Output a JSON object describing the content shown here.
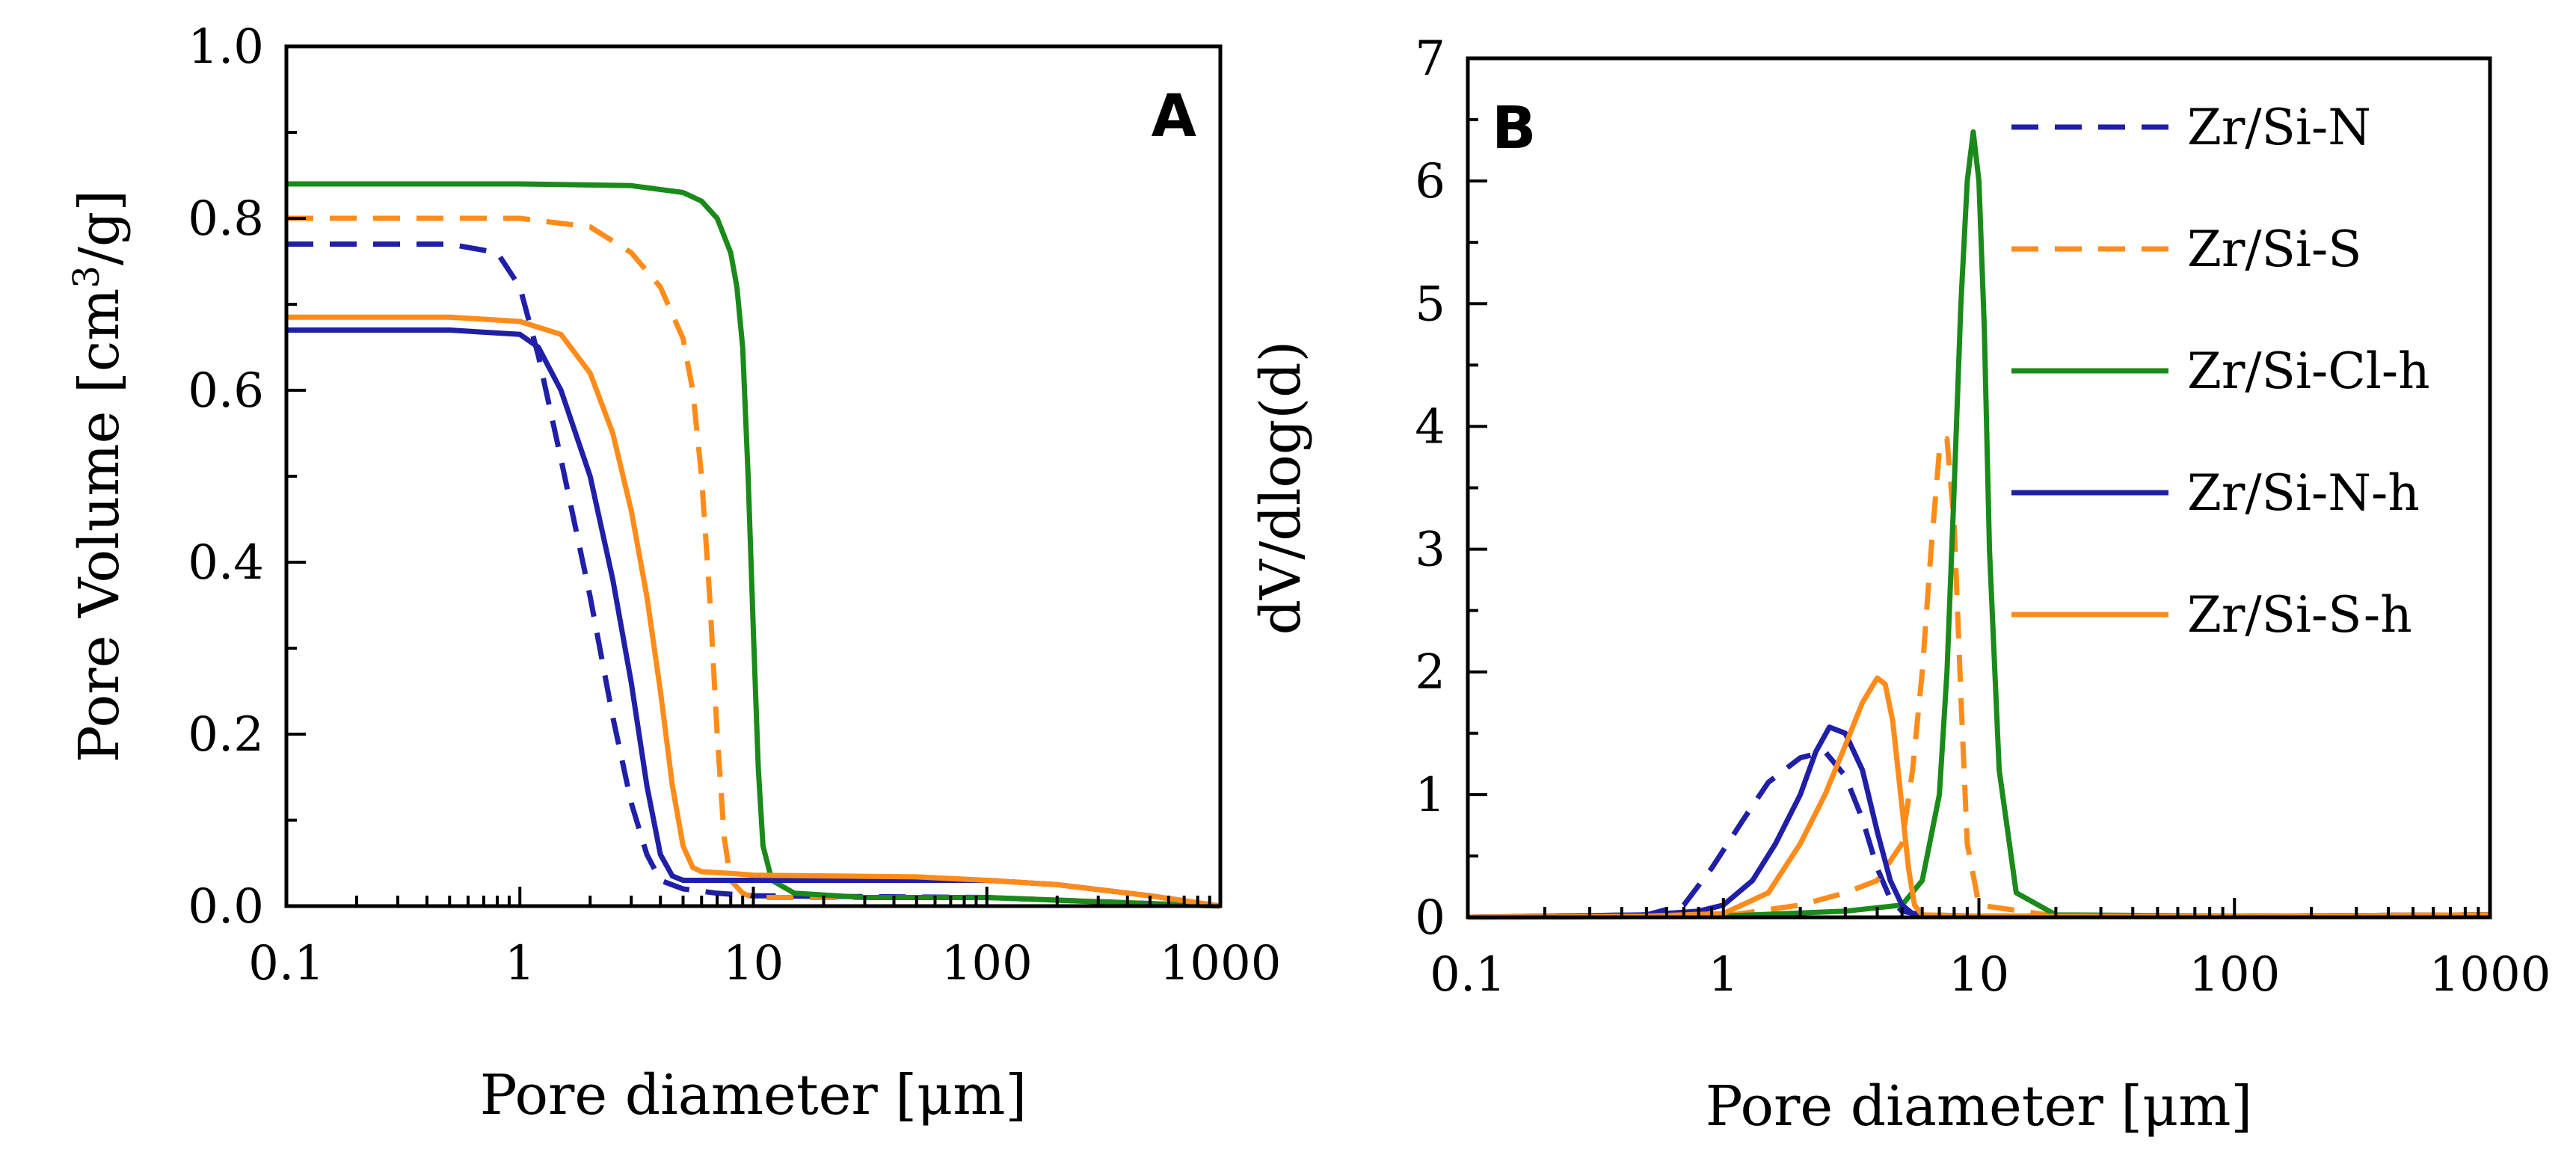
{
  "colors": {
    "Zr/Si-N": "#1f1fa8",
    "Zr/Si-S": "#ff8c1a",
    "Zr/Si-Cl-h": "#1a8a1a",
    "Zr/Si-N-h": "#1f1fa8",
    "Zr/Si-S-h": "#ff8c1a"
  },
  "chart_data": [
    {
      "type": "line",
      "panel_label": "A",
      "xlabel": "Pore diameter [μm]",
      "ylabel_main": "Pore Volume [cm",
      "ylabel_sup": "3",
      "ylabel_end": "/g]",
      "xscale": "log",
      "xlim": [
        0.1,
        1000
      ],
      "ylim": [
        0,
        1.0
      ],
      "xticks": [
        0.1,
        1,
        10,
        100,
        1000
      ],
      "xtick_labels": [
        "0.1",
        "1",
        "10",
        "100",
        "1000"
      ],
      "yticks": [
        0,
        0.2,
        0.4,
        0.6,
        0.8,
        1.0
      ],
      "ytick_labels": [
        "0.0",
        "0.2",
        "0.4",
        "0.6",
        "0.8",
        "1.0"
      ],
      "series": [
        {
          "name": "Zr/Si-N",
          "dash": true,
          "x": [
            0.1,
            0.5,
            0.8,
            1.0,
            1.2,
            1.5,
            2.0,
            2.5,
            3.0,
            3.5,
            4.0,
            5.0,
            7.0,
            10,
            100,
            1000
          ],
          "y": [
            0.77,
            0.77,
            0.76,
            0.72,
            0.64,
            0.52,
            0.36,
            0.22,
            0.12,
            0.06,
            0.03,
            0.02,
            0.015,
            0.012,
            0.01,
            0.0
          ]
        },
        {
          "name": "Zr/Si-S",
          "dash": true,
          "x": [
            0.1,
            1.0,
            2.0,
            3.0,
            4.0,
            5.0,
            5.5,
            6.0,
            6.5,
            7.0,
            7.5,
            8.0,
            9.0,
            10,
            100,
            1000
          ],
          "y": [
            0.8,
            0.8,
            0.79,
            0.76,
            0.72,
            0.66,
            0.6,
            0.5,
            0.36,
            0.2,
            0.08,
            0.03,
            0.015,
            0.01,
            0.01,
            0.0
          ]
        },
        {
          "name": "Zr/Si-Cl-h",
          "dash": false,
          "x": [
            0.1,
            1.0,
            3.0,
            5.0,
            6.0,
            7.0,
            8.0,
            8.5,
            9.0,
            9.5,
            10.0,
            10.5,
            11.0,
            12.0,
            15.0,
            30,
            100,
            300,
            1000
          ],
          "y": [
            0.84,
            0.84,
            0.838,
            0.83,
            0.82,
            0.8,
            0.76,
            0.72,
            0.65,
            0.5,
            0.32,
            0.16,
            0.07,
            0.03,
            0.015,
            0.01,
            0.01,
            0.005,
            0.0
          ]
        },
        {
          "name": "Zr/Si-N-h",
          "dash": false,
          "x": [
            0.1,
            0.5,
            1.0,
            1.2,
            1.5,
            2.0,
            2.5,
            3.0,
            3.5,
            4.0,
            4.5,
            5.0,
            6.0,
            10,
            50,
            100,
            200,
            500,
            1000
          ],
          "y": [
            0.67,
            0.67,
            0.665,
            0.65,
            0.6,
            0.5,
            0.38,
            0.26,
            0.14,
            0.06,
            0.035,
            0.03,
            0.03,
            0.03,
            0.03,
            0.03,
            0.025,
            0.012,
            0.0
          ]
        },
        {
          "name": "Zr/Si-S-h",
          "dash": false,
          "x": [
            0.1,
            0.5,
            1.0,
            1.5,
            2.0,
            2.5,
            3.0,
            3.5,
            4.0,
            4.5,
            5.0,
            5.5,
            6.0,
            8.0,
            10,
            50,
            100,
            200,
            500,
            1000
          ],
          "y": [
            0.685,
            0.685,
            0.68,
            0.665,
            0.62,
            0.55,
            0.46,
            0.36,
            0.25,
            0.14,
            0.07,
            0.045,
            0.04,
            0.038,
            0.036,
            0.034,
            0.03,
            0.025,
            0.012,
            0.0
          ]
        }
      ]
    },
    {
      "type": "line",
      "panel_label": "B",
      "xlabel": "Pore diameter [μm]",
      "ylabel": "dV/dlog(d)",
      "xscale": "log",
      "xlim": [
        0.1,
        1000
      ],
      "ylim": [
        0,
        7
      ],
      "xticks": [
        0.1,
        1,
        10,
        100,
        1000
      ],
      "xtick_labels": [
        "0.1",
        "1",
        "10",
        "100",
        "1000"
      ],
      "yticks": [
        0,
        1,
        2,
        3,
        4,
        5,
        6,
        7
      ],
      "ytick_labels": [
        "0",
        "1",
        "2",
        "3",
        "4",
        "5",
        "6",
        "7"
      ],
      "legend": "top-right",
      "series": [
        {
          "name": "Zr/Si-N",
          "dash": true,
          "x": [
            0.1,
            0.5,
            0.7,
            0.9,
            1.2,
            1.5,
            2.0,
            2.5,
            3.0,
            3.5,
            4.0,
            4.5,
            5.0,
            6.0,
            10,
            100,
            1000
          ],
          "y": [
            0,
            0.02,
            0.1,
            0.4,
            0.8,
            1.1,
            1.3,
            1.35,
            1.15,
            0.8,
            0.4,
            0.15,
            0.05,
            0.02,
            0.01,
            0.01,
            0.02
          ]
        },
        {
          "name": "Zr/Si-S",
          "dash": true,
          "x": [
            0.1,
            1.0,
            2.0,
            3.0,
            4.0,
            5.0,
            5.5,
            6.0,
            6.5,
            7.0,
            7.5,
            8.0,
            8.5,
            9.0,
            10,
            20,
            100,
            1000
          ],
          "y": [
            0,
            0.01,
            0.1,
            0.2,
            0.3,
            0.6,
            1.2,
            2.0,
            3.0,
            3.8,
            3.9,
            3.2,
            1.8,
            0.6,
            0.1,
            0.01,
            0.01,
            0.02
          ]
        },
        {
          "name": "Zr/Si-Cl-h",
          "dash": false,
          "x": [
            0.1,
            1.0,
            3.0,
            5.0,
            6.0,
            7.0,
            7.5,
            8.0,
            8.5,
            9.0,
            9.5,
            10.0,
            10.5,
            11.0,
            12.0,
            14.0,
            20,
            100,
            1000
          ],
          "y": [
            0,
            0.01,
            0.05,
            0.1,
            0.3,
            1.0,
            2.0,
            3.5,
            5.0,
            6.0,
            6.4,
            6.0,
            4.8,
            3.0,
            1.2,
            0.2,
            0.02,
            0.01,
            0.02
          ]
        },
        {
          "name": "Zr/Si-N-h",
          "dash": false,
          "x": [
            0.1,
            0.5,
            0.8,
            1.0,
            1.3,
            1.6,
            2.0,
            2.3,
            2.6,
            3.0,
            3.5,
            4.0,
            4.5,
            5.0,
            5.5,
            6.0,
            10,
            100,
            1000
          ],
          "y": [
            0,
            0.02,
            0.05,
            0.1,
            0.3,
            0.6,
            1.0,
            1.35,
            1.55,
            1.5,
            1.2,
            0.7,
            0.3,
            0.1,
            0.03,
            0.01,
            0.01,
            0.01,
            0.02
          ]
        },
        {
          "name": "Zr/Si-S-h",
          "dash": false,
          "x": [
            0.1,
            0.5,
            1.0,
            1.5,
            2.0,
            2.5,
            3.0,
            3.5,
            4.0,
            4.3,
            4.6,
            5.0,
            5.3,
            5.6,
            6.0,
            10,
            100,
            1000
          ],
          "y": [
            0,
            0.01,
            0.03,
            0.2,
            0.6,
            1.0,
            1.4,
            1.75,
            1.95,
            1.9,
            1.6,
            0.9,
            0.4,
            0.1,
            0.02,
            0.01,
            0.01,
            0.02
          ]
        }
      ]
    }
  ]
}
